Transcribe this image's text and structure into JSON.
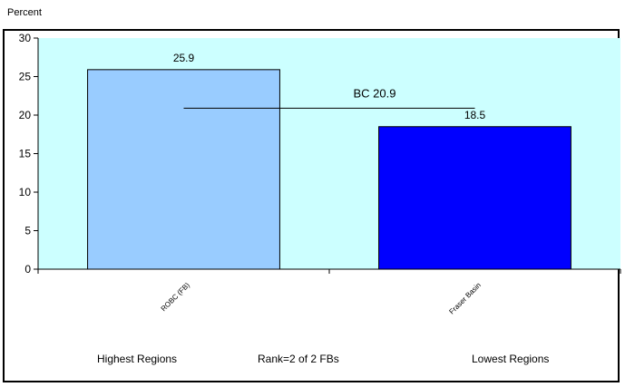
{
  "chart_data": {
    "type": "bar",
    "ylabel": "Percent",
    "ylim": [
      0,
      30
    ],
    "yticks": [
      0,
      5,
      10,
      15,
      20,
      25,
      30
    ],
    "categories": [
      "ROBC (FB)",
      "Fraser Basin"
    ],
    "values": [
      25.9,
      18.5
    ],
    "data_labels": [
      "25.9",
      "18.5"
    ],
    "bar_colors": [
      "#99ccff",
      "#0000ff"
    ],
    "reference_line": {
      "label": "BC 20.9",
      "value": 20.9
    },
    "plot_background": "#ccffff",
    "grid": false,
    "legend": "none"
  },
  "footer": {
    "left": "Highest Regions",
    "center": "Rank=2 of 2 FBs",
    "right": "Lowest Regions"
  }
}
